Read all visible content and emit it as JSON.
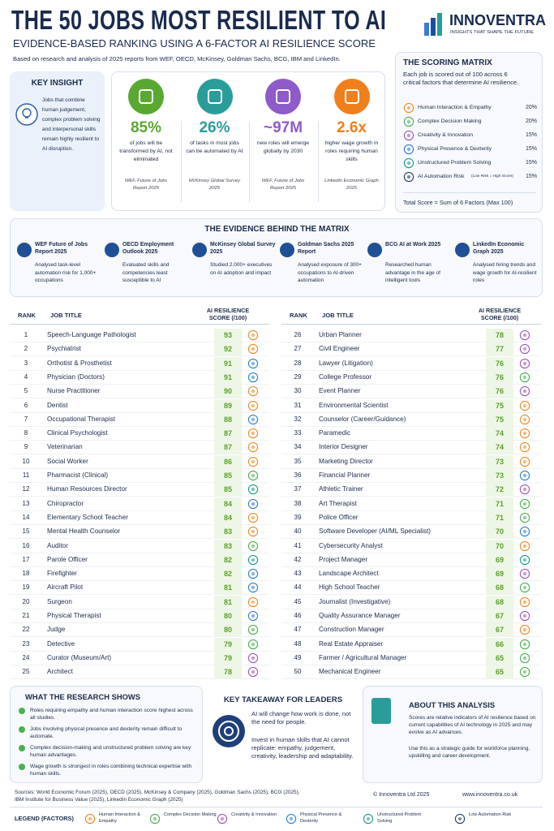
{
  "header": {
    "title": "THE 50 JOBS MOST RESILIENT TO AI",
    "subtitle": "EVIDENCE-BASED RANKING USING A 6-FACTOR AI RESILIENCE SCORE",
    "intro": "Based on research and analysis of 2025 reports from WEF, OECD, McKinsey, Goldman Sachs, BCG, IBM and LinkedIn.",
    "brand": "INNOVENTRA",
    "tagline": "INSIGHTS THAT SHAPE THE FUTURE"
  },
  "key_insight": {
    "title": "KEY INSIGHT",
    "text": "Jobs that combine human judgement, complex problem solving and interpersonal skills remain highly resilient to AI disruption."
  },
  "stats": [
    {
      "value": "85%",
      "text": "of jobs will be transformed by AI, not eliminated",
      "source": "WEF, Future of Jobs Report 2025"
    },
    {
      "value": "26%",
      "text": "of tasks in most jobs can be automated by AI",
      "source": "McKinsey Global Survey 2025"
    },
    {
      "value": "~97M",
      "text": "new roles will emerge globally by 2030",
      "source": "WEF, Future of Jobs Report 2025"
    },
    {
      "value": "2.6x",
      "text": "higher wage growth in roles requiring human skills",
      "source": "LinkedIn Economic Graph 2025"
    }
  ],
  "scoring_matrix": {
    "title": "THE SCORING MATRIX",
    "intro": "Each job is scored out of 100 across 6 critical factors that determine AI resilience.",
    "factors": [
      {
        "name": "Human Interaction & Empathy",
        "weight": "20%"
      },
      {
        "name": "Complex Decision Making",
        "weight": "20%"
      },
      {
        "name": "Creativity & Innovation",
        "weight": "15%"
      },
      {
        "name": "Physical Presence & Dexterity",
        "weight": "15%"
      },
      {
        "name": "Unstructured Problem Solving",
        "weight": "15%"
      },
      {
        "name": "AI Automation Risk",
        "note": "(Low Risk = High Score)",
        "weight": "15%"
      }
    ],
    "total": "Total Score = Sum of 6 Factors (Max 100)"
  },
  "evidence": {
    "title": "THE EVIDENCE BEHIND THE MATRIX",
    "items": [
      {
        "title": "WEF Future of Jobs Report 2025",
        "text": "Analysed task-level automation risk for 1,000+ occupations"
      },
      {
        "title": "OECD Employment Outlook 2025",
        "text": "Evaluated skills and competencies least susceptible to AI"
      },
      {
        "title": "McKinsey Global Survey 2025",
        "text": "Studied 2,000+ executives on AI adoption and impact"
      },
      {
        "title": "Goldman Sachs 2025 Report",
        "text": "Analysed exposure of 300+ occupations to AI-driven automation"
      },
      {
        "title": "BCG AI at Work 2025",
        "text": "Researched human advantage in the age of intelligent tools"
      },
      {
        "title": "LinkedIn Economic Graph 2025",
        "text": "Analysed hiring trends and wage growth for AI-resilient roles"
      }
    ]
  },
  "table": {
    "headers": [
      "RANK",
      "JOB TITLE",
      "AI RESILIENCE SCORE (/100)"
    ],
    "rows": [
      [
        1,
        "Speech-Language Pathologist",
        93
      ],
      [
        2,
        "Psychiatrist",
        92
      ],
      [
        3,
        "Orthotist & Prosthetist",
        91
      ],
      [
        4,
        "Physician (Doctors)",
        91
      ],
      [
        5,
        "Nurse Practitioner",
        90
      ],
      [
        6,
        "Dentist",
        89
      ],
      [
        7,
        "Occupational Therapist",
        88
      ],
      [
        8,
        "Clinical Psychologist",
        87
      ],
      [
        9,
        "Veterinarian",
        87
      ],
      [
        10,
        "Social Worker",
        86
      ],
      [
        11,
        "Pharmacist (Clinical)",
        85
      ],
      [
        12,
        "Human Resources Director",
        85
      ],
      [
        13,
        "Chiropractor",
        84
      ],
      [
        14,
        "Elementary School Teacher",
        84
      ],
      [
        15,
        "Mental Health Counselor",
        83
      ],
      [
        16,
        "Auditor",
        83
      ],
      [
        17,
        "Parole Officer",
        82
      ],
      [
        18,
        "Firefighter",
        82
      ],
      [
        19,
        "Aircraft Pilot",
        81
      ],
      [
        20,
        "Surgeon",
        81
      ],
      [
        21,
        "Physical Therapist",
        80
      ],
      [
        22,
        "Judge",
        80
      ],
      [
        23,
        "Detective",
        79
      ],
      [
        24,
        "Curator (Museum/Art)",
        79
      ],
      [
        25,
        "Architect",
        78
      ],
      [
        26,
        "Urban Planner",
        78
      ],
      [
        27,
        "Civil Engineer",
        77
      ],
      [
        28,
        "Lawyer (Litigation)",
        76
      ],
      [
        29,
        "College Professor",
        76
      ],
      [
        30,
        "Event Planner",
        76
      ],
      [
        31,
        "Environmental Scientist",
        75
      ],
      [
        32,
        "Counselor (Career/Guidance)",
        75
      ],
      [
        33,
        "Paramedic",
        74
      ],
      [
        34,
        "Interior Designer",
        74
      ],
      [
        35,
        "Marketing Director",
        73
      ],
      [
        36,
        "Financial Planner",
        73
      ],
      [
        37,
        "Athletic Trainer",
        72
      ],
      [
        38,
        "Art Therapist",
        71
      ],
      [
        39,
        "Police Officer",
        71
      ],
      [
        40,
        "Software Developer (AI/ML Specialist)",
        70
      ],
      [
        41,
        "Cybersecurity Analyst",
        70
      ],
      [
        42,
        "Project Manager",
        69
      ],
      [
        43,
        "Landscape Architect",
        69
      ],
      [
        44,
        "High School Teacher",
        68
      ],
      [
        45,
        "Journalist (Investigative)",
        68
      ],
      [
        46,
        "Quality Assurance Manager",
        67
      ],
      [
        47,
        "Construction Manager",
        67
      ],
      [
        48,
        "Real Estate Appraiser",
        66
      ],
      [
        49,
        "Farmer / Agricultural Manager",
        65
      ],
      [
        50,
        "Mechanical Engineer",
        65
      ]
    ]
  },
  "research": {
    "title": "WHAT THE RESEARCH SHOWS",
    "bullets": [
      "Roles requiring empathy and human interaction score highest across all studies.",
      "Jobs involving physical presence and dexterity remain difficult to automate.",
      "Complex decision-making and unstructured problem solving are key human advantages.",
      "Wage growth is strongest in roles combining technical expertise with human skills."
    ]
  },
  "takeaway": {
    "title": "KEY TAKEAWAY FOR LEADERS",
    "lead": "AI will change how work is done, not the need for people.",
    "text": "Invest in human skills that AI cannot replicate: empathy, judgement, creativity, leadership and adaptability."
  },
  "about": {
    "title": "ABOUT THIS ANALYSIS",
    "p1": "Scores are relative indicators of AI resilience based on current capabilities of AI technology in 2025 and may evolve as AI advances.",
    "p2": "Use this as a strategic guide for workforce planning, upskilling and career development."
  },
  "footer": {
    "sources": "Sources: World Economic Forum (2025), OECD (2025), McKinsey & Company (2025), Goldman Sachs (2025), BCG (2025), IBM Institute for Business Value (2025), LinkedIn Economic Graph (2025)",
    "copyright": "© Innoventra Ltd 2025",
    "url": "www.innoventra.co.uk"
  },
  "legend": {
    "title": "LEGEND (FACTORS)",
    "items": [
      "Human Interaction & Empathy",
      "Complex Decision Making",
      "Creativity & Innovation",
      "Physical Presence & Dexterity",
      "Unstructured Problem Solving",
      "Low Automation Risk"
    ]
  }
}
